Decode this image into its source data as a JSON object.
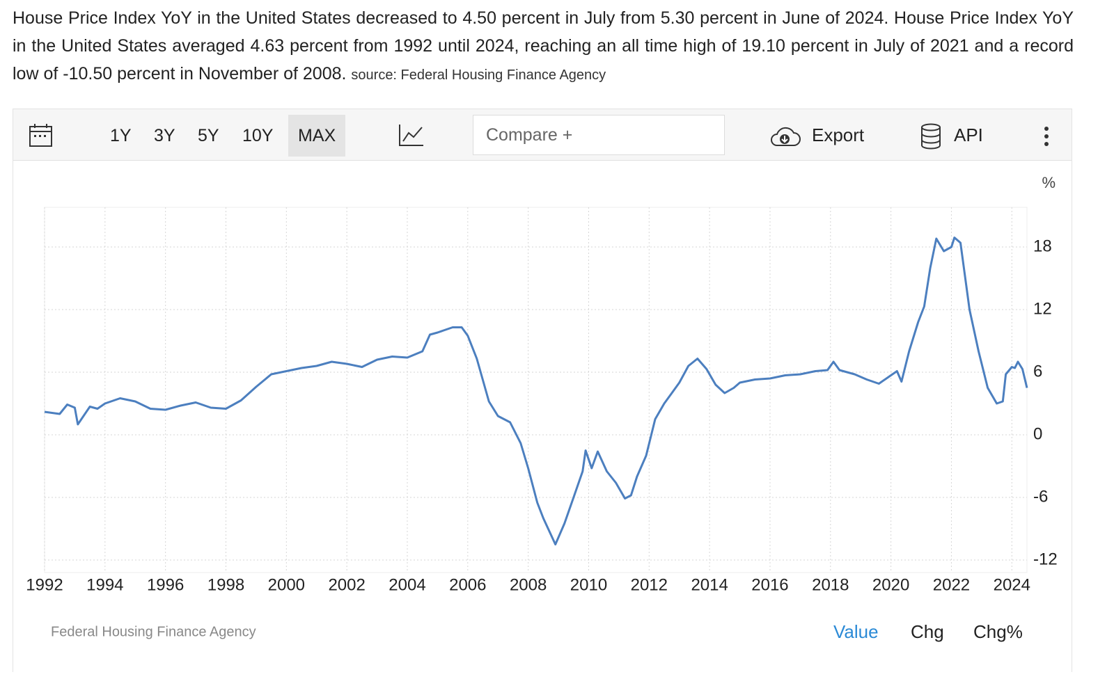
{
  "description": {
    "text": "House Price Index YoY in the United States decreased to 4.50 percent in July from 5.30 percent in June of 2024. House Price Index YoY in the United States averaged 4.63 percent from 1992 until 2024, reaching an all time high of 19.10 percent in July of 2021 and a record low of -10.50 percent in November of 2008.",
    "source": "source: Federal Housing Finance Agency"
  },
  "toolbar": {
    "ranges": [
      "1Y",
      "3Y",
      "5Y",
      "10Y",
      "MAX"
    ],
    "selected": "MAX",
    "compare": "Compare +",
    "export": "Export",
    "api": "API"
  },
  "chart_data": {
    "type": "line",
    "unit_label": "%",
    "color": "#4c7fbf",
    "grid": true,
    "x": [
      1992.0,
      1992.5,
      1992.75,
      1993.0,
      1993.1,
      1993.5,
      1993.75,
      1994.0,
      1994.5,
      1995.0,
      1995.5,
      1996.0,
      1996.5,
      1997.0,
      1997.5,
      1998.0,
      1998.5,
      1999.0,
      1999.5,
      2000.0,
      2000.5,
      2001.0,
      2001.5,
      2002.0,
      2002.5,
      2003.0,
      2003.5,
      2004.0,
      2004.5,
      2004.75,
      2005.0,
      2005.5,
      2005.8,
      2006.0,
      2006.3,
      2006.7,
      2007.0,
      2007.4,
      2007.75,
      2008.0,
      2008.3,
      2008.5,
      2008.9,
      2009.2,
      2009.5,
      2009.8,
      2009.9,
      2010.1,
      2010.3,
      2010.6,
      2010.9,
      2011.2,
      2011.4,
      2011.6,
      2011.9,
      2012.2,
      2012.5,
      2012.75,
      2013.0,
      2013.3,
      2013.6,
      2013.9,
      2014.2,
      2014.5,
      2014.8,
      2015.0,
      2015.5,
      2016.0,
      2016.5,
      2017.0,
      2017.5,
      2017.9,
      2018.1,
      2018.3,
      2018.8,
      2019.2,
      2019.6,
      2020.0,
      2020.2,
      2020.35,
      2020.6,
      2020.9,
      2021.1,
      2021.3,
      2021.5,
      2021.75,
      2022.0,
      2022.1,
      2022.3,
      2022.6,
      2022.9,
      2023.2,
      2023.5,
      2023.7,
      2023.8,
      2024.0,
      2024.1,
      2024.2,
      2024.35,
      2024.5
    ],
    "values": [
      2.2,
      2.0,
      2.9,
      2.6,
      1.0,
      2.7,
      2.5,
      3.0,
      3.5,
      3.2,
      2.5,
      2.4,
      2.8,
      3.1,
      2.6,
      2.5,
      3.3,
      4.6,
      5.8,
      6.1,
      6.4,
      6.6,
      7.0,
      6.8,
      6.5,
      7.2,
      7.5,
      7.4,
      8.0,
      9.6,
      9.8,
      10.3,
      10.3,
      9.5,
      7.3,
      3.2,
      1.8,
      1.2,
      -0.8,
      -3.2,
      -6.5,
      -8.0,
      -10.5,
      -8.5,
      -6.0,
      -3.5,
      -1.5,
      -3.2,
      -1.6,
      -3.5,
      -4.6,
      -6.1,
      -5.8,
      -4.0,
      -2.0,
      1.5,
      3.0,
      4.0,
      5.0,
      6.6,
      7.3,
      6.3,
      4.8,
      4.0,
      4.5,
      5.0,
      5.3,
      5.4,
      5.7,
      5.8,
      6.1,
      6.2,
      7.0,
      6.2,
      5.8,
      5.3,
      4.9,
      5.7,
      6.1,
      5.1,
      8.0,
      10.8,
      12.3,
      16.0,
      18.8,
      17.6,
      18.0,
      18.9,
      18.4,
      12.0,
      8.0,
      4.5,
      3.0,
      3.2,
      5.8,
      6.5,
      6.4,
      7.0,
      6.3,
      4.5
    ],
    "xlim": [
      1992,
      2024.5
    ],
    "ylim": [
      -13.2,
      21.8
    ],
    "xticks": [
      1992,
      1994,
      1996,
      1998,
      2000,
      2002,
      2004,
      2006,
      2008,
      2010,
      2012,
      2014,
      2016,
      2018,
      2020,
      2022,
      2024
    ],
    "yticks": [
      -12,
      -6,
      0,
      6,
      12,
      18
    ],
    "source": "Federal Housing Finance Agency"
  },
  "view_tabs": {
    "options": [
      "Value",
      "Chg",
      "Chg%"
    ],
    "selected": "Value"
  }
}
